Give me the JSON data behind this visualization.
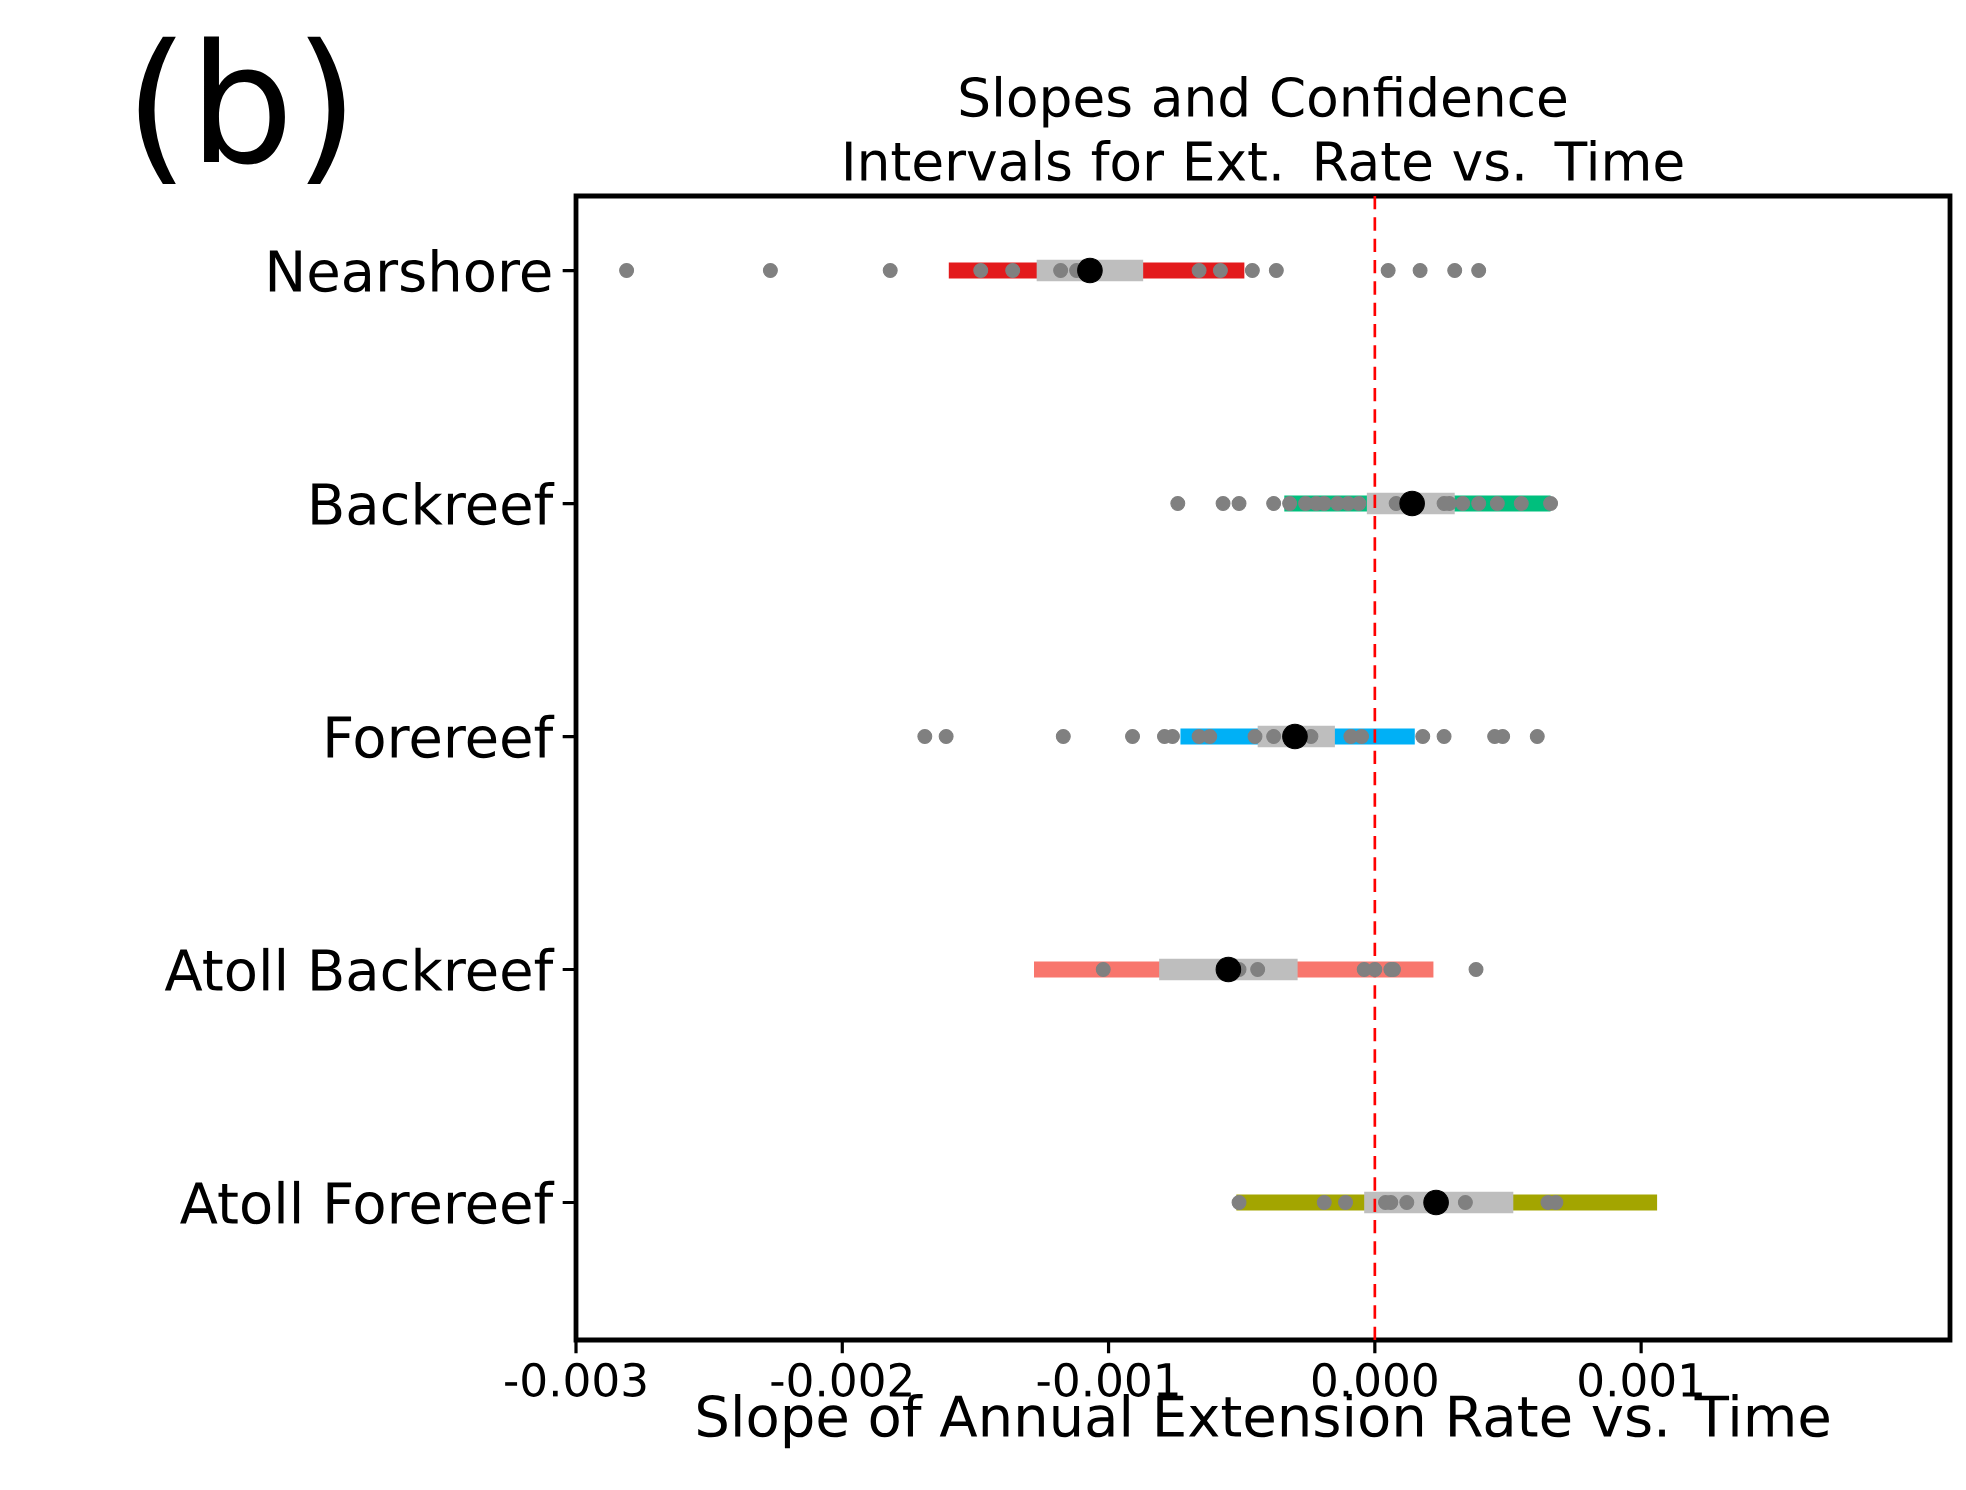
{
  "chart_data": {
    "type": "bar",
    "orientation": "horizontal",
    "title": "Slopes and Confidence Intervals for Ext. Rate vs. Time",
    "xlabel": "Slope of Annual Extension Rate vs. Time",
    "annotations": [
      "(b)"
    ],
    "categories": [
      "Nearshore",
      "Backreef",
      "Forereef",
      "Atoll Backreef",
      "Atoll Forereef"
    ],
    "xlim": [
      -0.003,
      0.00216
    ],
    "xticks": [
      -0.003,
      -0.002,
      -0.001,
      {
        "value": 0,
        "label": "0.000"
      },
      0.001
    ],
    "ref_lines": [
      {
        "axis": "x",
        "value": 0,
        "color": "#ff0000",
        "line_style": "dashed"
      }
    ],
    "series": [
      {
        "colors": [
          "#e31a1c",
          "#00bf7d",
          "#00b0f6",
          "#f8766d",
          "#a3a500"
        ],
        "base": [
          -0.0016,
          -0.00034,
          -0.00073,
          -0.00128,
          -0.00052
        ],
        "values": [
          0.00111,
          0.001,
          0.00088,
          0.0015,
          0.00158
        ]
      },
      {
        "color": "#bebebe",
        "base": [
          -0.00127,
          -3e-05,
          -0.00044,
          -0.00081,
          -4e-05
        ],
        "values": [
          0.0004,
          0.00033,
          0.00029,
          0.00052,
          0.00056
        ]
      },
      {
        "type": "scatter",
        "color": "#808080",
        "x": [
          "Nearshore",
          "Nearshore",
          "Nearshore",
          "Nearshore",
          "Nearshore",
          "Nearshore",
          "Nearshore",
          "Nearshore",
          "Nearshore",
          "Nearshore",
          "Nearshore",
          "Nearshore",
          "Nearshore",
          "Nearshore",
          "Nearshore",
          "Backreef",
          "Backreef",
          "Backreef",
          "Backreef",
          "Backreef",
          "Backreef",
          "Backreef",
          "Backreef",
          "Backreef",
          "Backreef",
          "Backreef",
          "Backreef",
          "Backreef",
          "Backreef",
          "Backreef",
          "Backreef",
          "Backreef",
          "Backreef",
          "Backreef",
          "Forereef",
          "Forereef",
          "Forereef",
          "Forereef",
          "Forereef",
          "Forereef",
          "Forereef",
          "Forereef",
          "Forereef",
          "Forereef",
          "Forereef",
          "Forereef",
          "Forereef",
          "Forereef",
          "Forereef",
          "Forereef",
          "Forereef",
          "Forereef",
          "Atoll Backreef",
          "Atoll Backreef",
          "Atoll Backreef",
          "Atoll Backreef",
          "Atoll Backreef",
          "Atoll Backreef",
          "Atoll Backreef",
          "Atoll Backreef",
          "Atoll Forereef",
          "Atoll Forereef",
          "Atoll Forereef",
          "Atoll Forereef",
          "Atoll Forereef",
          "Atoll Forereef",
          "Atoll Forereef",
          "Atoll Forereef",
          "Atoll Forereef"
        ],
        "values": [
          -0.00281,
          -0.00227,
          -0.00182,
          -0.00148,
          -0.00136,
          -0.00118,
          -0.00112,
          -0.00066,
          -0.00058,
          -0.00046,
          -0.00037,
          5e-05,
          0.00017,
          0.0003,
          0.00039,
          -0.00074,
          -0.00057,
          -0.00051,
          -0.00038,
          -0.00032,
          -0.00026,
          -0.00022,
          -0.00019,
          -0.00014,
          -0.0001,
          -6e-05,
          8e-05,
          0.00026,
          0.00028,
          0.00033,
          0.00039,
          0.00046,
          0.00055,
          0.00066,
          -0.00169,
          -0.00161,
          -0.00117,
          -0.00091,
          -0.00079,
          -0.00076,
          -0.00066,
          -0.00062,
          -0.00045,
          -0.00038,
          -0.00024,
          -9e-05,
          -5e-05,
          0.00018,
          0.00026,
          0.00045,
          0.00048,
          0.00061,
          -0.00102,
          -0.00051,
          -0.00044,
          -4e-05,
          0,
          6e-05,
          7e-05,
          0.00038,
          -0.00051,
          -0.00019,
          -0.00011,
          4e-05,
          6e-05,
          0.00012,
          0.00034,
          0.00065,
          0.00068
        ]
      },
      {
        "type": "scatter",
        "color": "#000000",
        "x": [
          "Nearshore",
          "Backreef",
          "Forereef",
          "Atoll Backreef",
          "Atoll Forereef"
        ],
        "values": [
          -0.00107,
          0.00014,
          -0.0003,
          -0.00055,
          0.00023
        ]
      }
    ]
  }
}
